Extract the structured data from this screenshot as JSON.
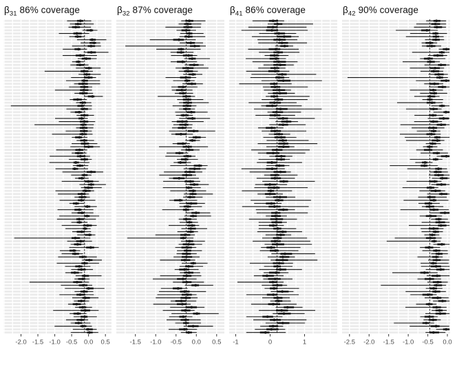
{
  "figure": {
    "background": "#ffffff"
  },
  "style": {
    "stripe": "#ebebeb",
    "grid_line": "#ffffff",
    "interval_color": "#1a1a1a",
    "ref_line_color": "#333333",
    "tick_color": "#333333",
    "tick_label_color": "#4d4d4d",
    "title_color": "#111111"
  },
  "chart_data": {
    "type": "interval",
    "layout": "4 horizontal facets; forest/interval plot; 100 rows per facet; striped row background; white vertical gridlines; dashed vertical reference line per facet; legend: none",
    "n_rows": 100,
    "seed": 7,
    "panels": [
      {
        "id": "beta31",
        "title_symbol": "β",
        "title_sub": "31",
        "title_rest": " 86% coverage",
        "coverage_pct": 86,
        "x_ticks": [
          -2.0,
          -1.5,
          -1.0,
          -0.5,
          0.0,
          0.5
        ],
        "tick_labels": [
          "-2.0",
          "-1.5",
          "-1.0",
          "-0.5",
          "0.0",
          "0.5"
        ],
        "x_range": [
          -2.52,
          0.68
        ],
        "grid_step": 0.25,
        "ref_value": -0.12,
        "gen": {
          "center": -0.18,
          "sd": 0.13,
          "inner_base": 0.06,
          "inner_var": 0.09,
          "outer_base": 0.1,
          "outer_var": 0.55,
          "outer_pow": 2.2,
          "left_mult": 1.3,
          "right_mult": 0.5
        },
        "outliers": [
          {
            "row": 16,
            "side": "left",
            "to": -1.3
          },
          {
            "row": 27,
            "side": "left",
            "to": -2.3
          },
          {
            "row": 33,
            "side": "left",
            "to": -1.6
          },
          {
            "row": 43,
            "side": "left",
            "to": -1.15
          },
          {
            "row": 69,
            "side": "left",
            "to": -2.2
          },
          {
            "row": 83,
            "side": "left",
            "to": -1.75
          }
        ]
      },
      {
        "id": "beta32",
        "title_symbol": "β",
        "title_sub": "32",
        "title_rest": " 87% coverage",
        "coverage_pct": 87,
        "x_ticks": [
          -1.5,
          -1.0,
          -0.5,
          0.0,
          0.5
        ],
        "tick_labels": [
          "-1.5",
          "-1.0",
          "-0.5",
          "0.0",
          "0.5"
        ],
        "x_range": [
          -1.97,
          0.69
        ],
        "grid_step": 0.25,
        "ref_value": -0.25,
        "gen": {
          "center": -0.2,
          "sd": 0.11,
          "inner_base": 0.06,
          "inner_var": 0.09,
          "outer_base": 0.1,
          "outer_var": 0.45,
          "outer_pow": 2.2,
          "left_mult": 1.2,
          "right_mult": 0.7
        },
        "outliers": [
          {
            "row": 8,
            "side": "left",
            "to": -1.75
          },
          {
            "row": 24,
            "side": "left",
            "to": -0.95
          },
          {
            "row": 69,
            "side": "left",
            "to": -1.7
          },
          {
            "row": 88,
            "side": "left",
            "to": -1.0
          },
          {
            "row": 93,
            "side": "right",
            "to": 0.55
          }
        ]
      },
      {
        "id": "beta41",
        "title_symbol": "β",
        "title_sub": "41",
        "title_rest": " 86% coverage",
        "coverage_pct": 86,
        "x_ticks": [
          -1,
          0,
          1
        ],
        "tick_labels": [
          "-1",
          "0",
          "1"
        ],
        "x_range": [
          -1.19,
          1.95
        ],
        "grid_step": 0.25,
        "ref_value": 0.2,
        "gen": {
          "center": 0.2,
          "sd": 0.16,
          "inner_base": 0.09,
          "inner_var": 0.12,
          "outer_base": 0.14,
          "outer_var": 0.7,
          "outer_pow": 2.0,
          "left_mult": 0.9,
          "right_mult": 1.15
        },
        "outliers": [
          {
            "row": 20,
            "side": "left",
            "to": -0.9
          },
          {
            "row": 28,
            "side": "right",
            "to": 1.5
          },
          {
            "row": 35,
            "side": "right",
            "to": 1.05
          },
          {
            "row": 51,
            "side": "right",
            "to": 1.3
          },
          {
            "row": 83,
            "side": "left",
            "to": -0.95
          }
        ]
      },
      {
        "id": "beta42",
        "title_symbol": "β",
        "title_sub": "42",
        "title_rest": " 90% coverage",
        "coverage_pct": 90,
        "x_ticks": [
          -2.5,
          -2.0,
          -1.5,
          -1.0,
          -0.5,
          0.0
        ],
        "tick_labels": [
          "-2.5",
          "-2.0",
          "-1.5",
          "-1.0",
          "-0.5",
          "0.0"
        ],
        "x_range": [
          -2.69,
          0.07
        ],
        "grid_step": 0.25,
        "ref_value": -0.45,
        "gen": {
          "center": -0.3,
          "sd": 0.13,
          "inner_base": 0.06,
          "inner_var": 0.09,
          "outer_base": 0.1,
          "outer_var": 0.5,
          "outer_pow": 2.2,
          "left_mult": 1.4,
          "right_mult": 0.45
        },
        "outliers": [
          {
            "row": 18,
            "side": "left",
            "to": -2.55
          },
          {
            "row": 33,
            "side": "left",
            "to": -1.2
          },
          {
            "row": 70,
            "side": "left",
            "to": -1.55
          },
          {
            "row": 84,
            "side": "left",
            "to": -1.7
          }
        ]
      }
    ]
  }
}
